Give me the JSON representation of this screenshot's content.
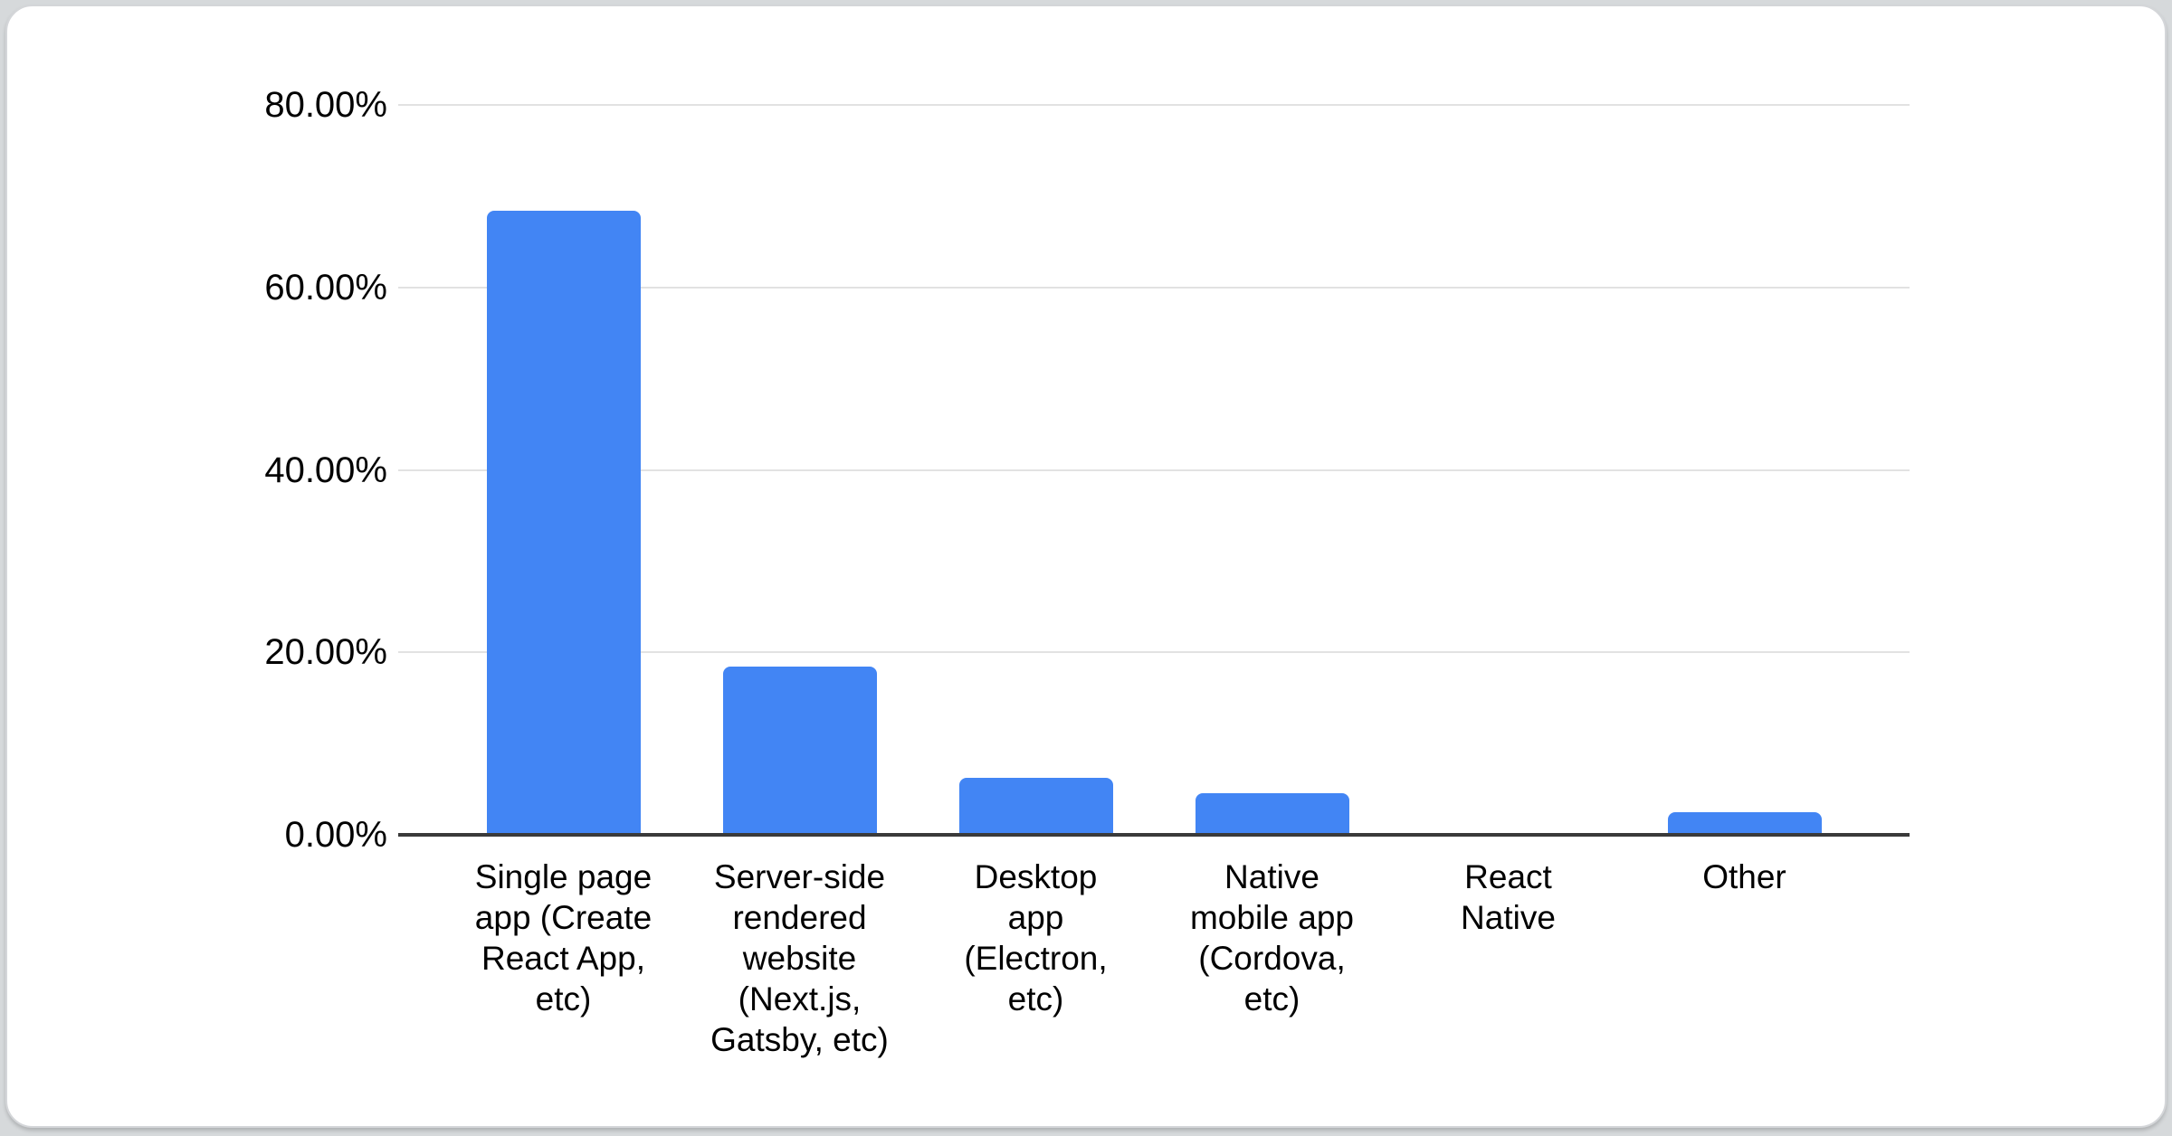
{
  "chart_data": {
    "type": "bar",
    "title": "",
    "xlabel": "",
    "ylabel": "",
    "ylim": [
      0,
      80
    ],
    "grid": true,
    "legend": "none",
    "bar_color": "#4285f4",
    "axis_color": "#3a3a3a",
    "gridline_color": "#e2e2e2",
    "yticks": [
      {
        "label": "80.00%",
        "value": 80
      },
      {
        "label": "60.00%",
        "value": 60
      },
      {
        "label": "40.00%",
        "value": 40
      },
      {
        "label": "20.00%",
        "value": 20
      },
      {
        "label": "0.00%",
        "value": 0
      }
    ],
    "categories": [
      "Single page app (Create React App, etc)",
      "Server-side rendered website (Next.js, Gatsby, etc)",
      "Desktop app (Electron, etc)",
      "Native mobile app (Cordova, etc)",
      "React Native",
      "Other"
    ],
    "category_label_lines": [
      [
        "Single page",
        "app (Create",
        "React App,",
        "etc)"
      ],
      [
        "Server-side",
        "rendered",
        "website",
        "(Next.js,",
        "Gatsby, etc)"
      ],
      [
        "Desktop",
        "app",
        "(Electron,",
        "etc)"
      ],
      [
        "Native",
        "mobile app",
        "(Cordova,",
        "etc)"
      ],
      [
        "React",
        "Native"
      ],
      [
        "Other"
      ]
    ],
    "category_ids": [
      "single-page-app",
      "server-side-rendered-website",
      "desktop-app",
      "native-mobile-app",
      "react-native",
      "other"
    ],
    "values": [
      68.4,
      18.4,
      6.2,
      4.6,
      0,
      2.5
    ]
  },
  "colors": {
    "card_background": "#ffffff",
    "page_background": "#d6d9db",
    "card_border": "#d4d6d9",
    "text": "#000000"
  }
}
